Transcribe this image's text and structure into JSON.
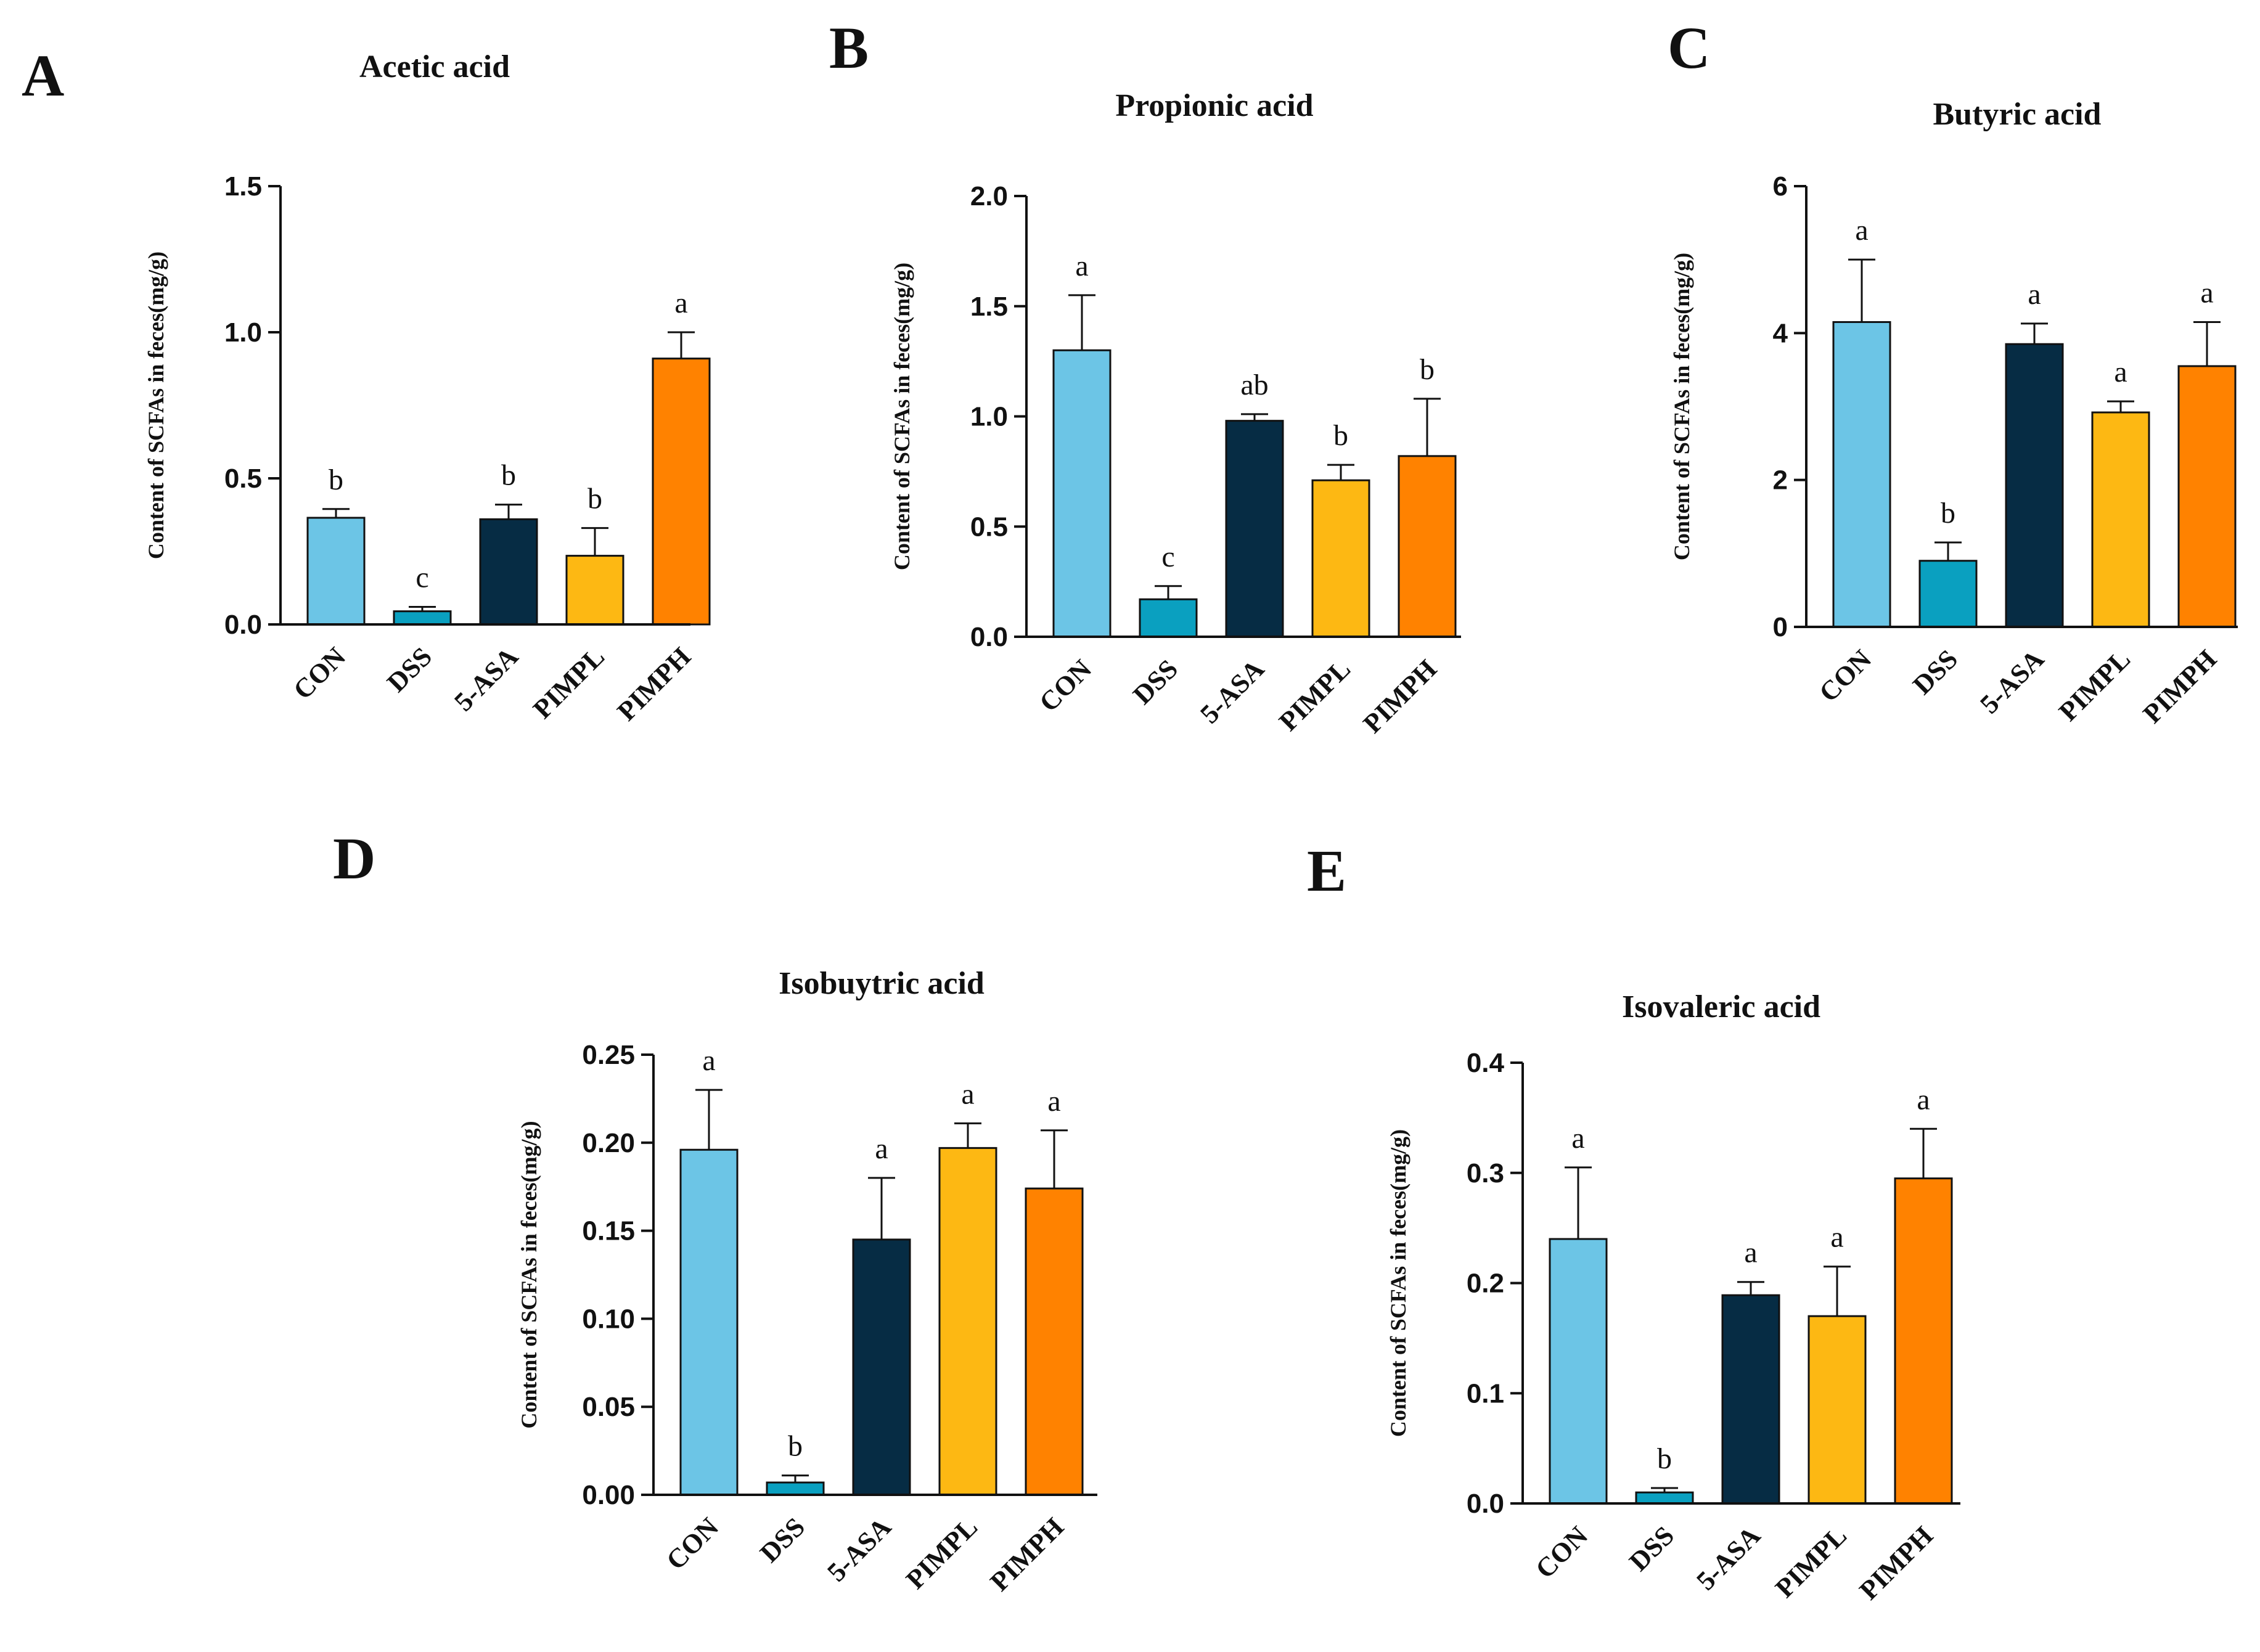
{
  "figure": {
    "legend_colors": {
      "CON": "#6CC5E6",
      "DSS": "#0AA0C0",
      "5-ASA": "#062C44",
      "PIMPL": "#FDB813",
      "PIMPH": "#FF8200"
    }
  },
  "chart_data": [
    {
      "panel": "A",
      "type": "bar",
      "title": "Acetic acid",
      "ylabel": "Content of SCFAs in feces(mg/g)",
      "xlabel": "",
      "categories": [
        "CON",
        "DSS",
        "5-ASA",
        "PIMPL",
        "PIMPH"
      ],
      "values": [
        0.365,
        0.045,
        0.36,
        0.235,
        0.91
      ],
      "errors": [
        0.03,
        0.015,
        0.05,
        0.095,
        0.09
      ],
      "significance": [
        "b",
        "c",
        "b",
        "b",
        "a"
      ],
      "ylim": [
        0,
        1.5
      ],
      "yticks": [
        "0.0",
        "0.5",
        "1.0",
        "1.5"
      ],
      "ytick_values": [
        0,
        0.5,
        1.0,
        1.5
      ]
    },
    {
      "panel": "B",
      "type": "bar",
      "title": "Propionic acid",
      "ylabel": "Content of SCFAs in feces(mg/g)",
      "xlabel": "",
      "categories": [
        "CON",
        "DSS",
        "5-ASA",
        "PIMPL",
        "PIMPH"
      ],
      "values": [
        1.3,
        0.17,
        0.98,
        0.71,
        0.82
      ],
      "errors": [
        0.25,
        0.06,
        0.03,
        0.07,
        0.26
      ],
      "significance": [
        "a",
        "c",
        "ab",
        "b",
        "b"
      ],
      "ylim": [
        0,
        2.0
      ],
      "yticks": [
        "0.0",
        "0.5",
        "1.0",
        "1.5",
        "2.0"
      ],
      "ytick_values": [
        0,
        0.5,
        1.0,
        1.5,
        2.0
      ]
    },
    {
      "panel": "C",
      "type": "bar",
      "title": "Butyric acid",
      "ylabel": "Content of SCFAs in feces(mg/g)",
      "xlabel": "",
      "categories": [
        "CON",
        "DSS",
        "5-ASA",
        "PIMPL",
        "PIMPH"
      ],
      "values": [
        4.15,
        0.9,
        3.85,
        2.92,
        3.55
      ],
      "errors": [
        0.85,
        0.25,
        0.28,
        0.15,
        0.6
      ],
      "significance": [
        "a",
        "b",
        "a",
        "a",
        "a"
      ],
      "ylim": [
        0,
        6
      ],
      "yticks": [
        "0",
        "2",
        "4",
        "6"
      ],
      "ytick_values": [
        0,
        2,
        4,
        6
      ]
    },
    {
      "panel": "D",
      "type": "bar",
      "title": "Isobuytric acid",
      "ylabel": "Content of SCFAs in feces(mg/g)",
      "xlabel": "",
      "categories": [
        "CON",
        "DSS",
        "5-ASA",
        "PIMPL",
        "PIMPH"
      ],
      "values": [
        0.196,
        0.007,
        0.145,
        0.197,
        0.174
      ],
      "errors": [
        0.034,
        0.004,
        0.035,
        0.014,
        0.033
      ],
      "significance": [
        "a",
        "b",
        "a",
        "a",
        "a"
      ],
      "ylim": [
        0,
        0.25
      ],
      "yticks": [
        "0.00",
        "0.05",
        "0.10",
        "0.15",
        "0.20",
        "0.25"
      ],
      "ytick_values": [
        0,
        0.05,
        0.1,
        0.15,
        0.2,
        0.25
      ]
    },
    {
      "panel": "E",
      "type": "bar",
      "title": "Isovaleric acid",
      "ylabel": "Content of SCFAs in feces(mg/g)",
      "xlabel": "",
      "categories": [
        "CON",
        "DSS",
        "5-ASA",
        "PIMPL",
        "PIMPH"
      ],
      "values": [
        0.24,
        0.01,
        0.189,
        0.17,
        0.295
      ],
      "errors": [
        0.065,
        0.004,
        0.012,
        0.045,
        0.045
      ],
      "significance": [
        "a",
        "b",
        "a",
        "a",
        "a"
      ],
      "ylim": [
        0,
        0.4
      ],
      "yticks": [
        "0.0",
        "0.1",
        "0.2",
        "0.3",
        "0.4"
      ],
      "ytick_values": [
        0,
        0.1,
        0.2,
        0.3,
        0.4
      ]
    }
  ]
}
